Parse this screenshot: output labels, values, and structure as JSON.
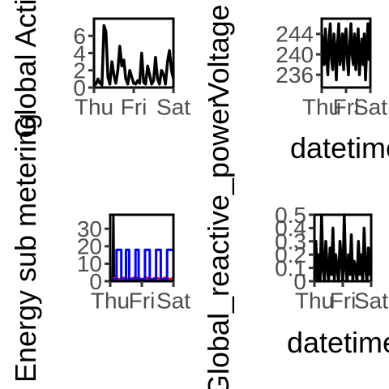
{
  "chart_data": [
    {
      "type": "line",
      "ylabel": "Global Active",
      "xlabel": "",
      "x_ticks": [
        "Thu",
        "Fri",
        "Sat"
      ],
      "y_ticks": [
        0,
        2,
        4,
        6
      ],
      "ylim": [
        0,
        8
      ],
      "xlim": [
        0,
        2
      ],
      "series": [
        {
          "color": "#000000",
          "x": [
            0.0,
            0.05,
            0.1,
            0.15,
            0.2,
            0.25,
            0.3,
            0.35,
            0.4,
            0.45,
            0.5,
            0.55,
            0.6,
            0.65,
            0.7,
            0.75,
            0.8,
            0.85,
            0.9,
            0.95,
            1.0,
            1.05,
            1.1,
            1.15,
            1.2,
            1.25,
            1.3,
            1.35,
            1.4,
            1.45,
            1.5,
            1.55,
            1.6,
            1.65,
            1.7,
            1.75,
            1.8,
            1.85,
            1.9,
            1.95,
            2.0
          ],
          "values": [
            0.3,
            0.4,
            1.0,
            0.5,
            0.3,
            7.2,
            6.5,
            1.2,
            0.4,
            3.0,
            1.5,
            0.5,
            2.0,
            4.8,
            2.5,
            3.2,
            1.0,
            0.4,
            2.0,
            1.2,
            0.5,
            0.4,
            0.8,
            0.5,
            4.0,
            0.6,
            0.4,
            2.5,
            1.5,
            0.4,
            0.8,
            3.5,
            1.0,
            0.4,
            2.0,
            1.5,
            0.4,
            3.0,
            4.3,
            2.0,
            1.0
          ]
        }
      ]
    },
    {
      "type": "line",
      "ylabel": "Voltage",
      "xlabel": "datetime",
      "x_ticks": [
        "Thu",
        "Fri",
        "Sat"
      ],
      "y_ticks": [
        236,
        240,
        244
      ],
      "ylim": [
        233.5,
        247
      ],
      "xlim": [
        0,
        2
      ],
      "series": [
        {
          "color": "#000000",
          "x": [
            0.0,
            0.05,
            0.1,
            0.15,
            0.2,
            0.25,
            0.3,
            0.35,
            0.4,
            0.45,
            0.5,
            0.55,
            0.6,
            0.65,
            0.7,
            0.75,
            0.8,
            0.85,
            0.9,
            0.95,
            1.0,
            1.05,
            1.1,
            1.15,
            1.2,
            1.25,
            1.3,
            1.35,
            1.4,
            1.45,
            1.5,
            1.55,
            1.6,
            1.65,
            1.7,
            1.75,
            1.8,
            1.85,
            1.9,
            1.95,
            2.0
          ],
          "values": [
            244,
            242,
            238,
            245,
            240,
            236,
            243,
            246,
            239,
            237,
            244,
            241,
            235,
            242,
            246,
            238,
            240,
            244,
            237,
            243,
            245,
            239,
            236,
            242,
            246,
            240,
            238,
            244,
            237,
            241,
            245,
            236,
            240,
            243,
            238,
            244,
            235,
            241,
            246,
            239,
            242
          ]
        }
      ]
    },
    {
      "type": "line",
      "ylabel": "Energy sub metering",
      "xlabel": "",
      "x_ticks": [
        "Thu",
        "Fri",
        "Sat"
      ],
      "y_ticks": [
        0,
        10,
        20,
        30
      ],
      "ylim": [
        0,
        38
      ],
      "xlim": [
        0,
        2
      ],
      "series": [
        {
          "color": "#000000",
          "x": [
            0.0,
            0.08,
            0.1,
            0.12,
            0.2,
            0.25,
            0.3,
            0.5,
            0.7,
            0.9,
            1.1,
            1.3,
            1.5,
            1.7,
            1.9,
            2.0
          ],
          "values": [
            0,
            0,
            38,
            0,
            0,
            1,
            0,
            1,
            0,
            1,
            0,
            1,
            0,
            1,
            0,
            0
          ]
        },
        {
          "color": "#ff0000",
          "x": [
            0.0,
            0.1,
            0.15,
            0.3,
            0.45,
            0.6,
            0.75,
            0.9,
            1.0,
            1.15,
            1.3,
            1.45,
            1.6,
            1.75,
            1.9,
            2.0
          ],
          "values": [
            2,
            1,
            2,
            1,
            2,
            1,
            2,
            2,
            1,
            2,
            1,
            2,
            1,
            2,
            1,
            2
          ]
        },
        {
          "color": "#0000ff",
          "x": [
            0.0,
            0.2,
            0.2,
            0.35,
            0.35,
            0.5,
            0.5,
            0.6,
            0.6,
            0.8,
            0.8,
            0.9,
            0.9,
            1.1,
            1.1,
            1.25,
            1.25,
            1.45,
            1.45,
            1.6,
            1.6,
            1.8,
            1.8,
            2.0
          ],
          "values": [
            1,
            1,
            18,
            18,
            1,
            1,
            18,
            18,
            1,
            1,
            18,
            18,
            1,
            1,
            18,
            18,
            1,
            1,
            18,
            18,
            1,
            1,
            18,
            18
          ]
        }
      ]
    },
    {
      "type": "line",
      "ylabel": "Global_reactive_power",
      "xlabel": "datetime",
      "x_ticks": [
        "Thu",
        "Fri",
        "Sat"
      ],
      "y_ticks": [
        0.0,
        0.1,
        0.2,
        0.3,
        0.4,
        0.5
      ],
      "ylim": [
        0,
        0.5
      ],
      "xlim": [
        0,
        2
      ],
      "series": [
        {
          "color": "#000000",
          "x": [
            0.0,
            0.05,
            0.1,
            0.15,
            0.2,
            0.25,
            0.3,
            0.35,
            0.4,
            0.45,
            0.5,
            0.55,
            0.6,
            0.65,
            0.7,
            0.75,
            0.8,
            0.85,
            0.9,
            0.95,
            1.0,
            1.05,
            1.1,
            1.15,
            1.2,
            1.25,
            1.3,
            1.35,
            1.4,
            1.45,
            1.5,
            1.55,
            1.6,
            1.65,
            1.7,
            1.75,
            1.8,
            1.85,
            1.9,
            1.95,
            2.0
          ],
          "values": [
            0.1,
            0.3,
            0.0,
            0.2,
            0.0,
            0.5,
            0.1,
            0.0,
            0.3,
            0.1,
            0.0,
            0.25,
            0.05,
            0.4,
            0.0,
            0.2,
            0.1,
            0.0,
            0.3,
            0.15,
            0.0,
            0.5,
            0.1,
            0.0,
            0.2,
            0.05,
            0.35,
            0.0,
            0.15,
            0.1,
            0.0,
            0.3,
            0.05,
            0.2,
            0.0,
            0.4,
            0.1,
            0.0,
            0.25,
            0.05,
            0.15
          ]
        }
      ]
    }
  ]
}
